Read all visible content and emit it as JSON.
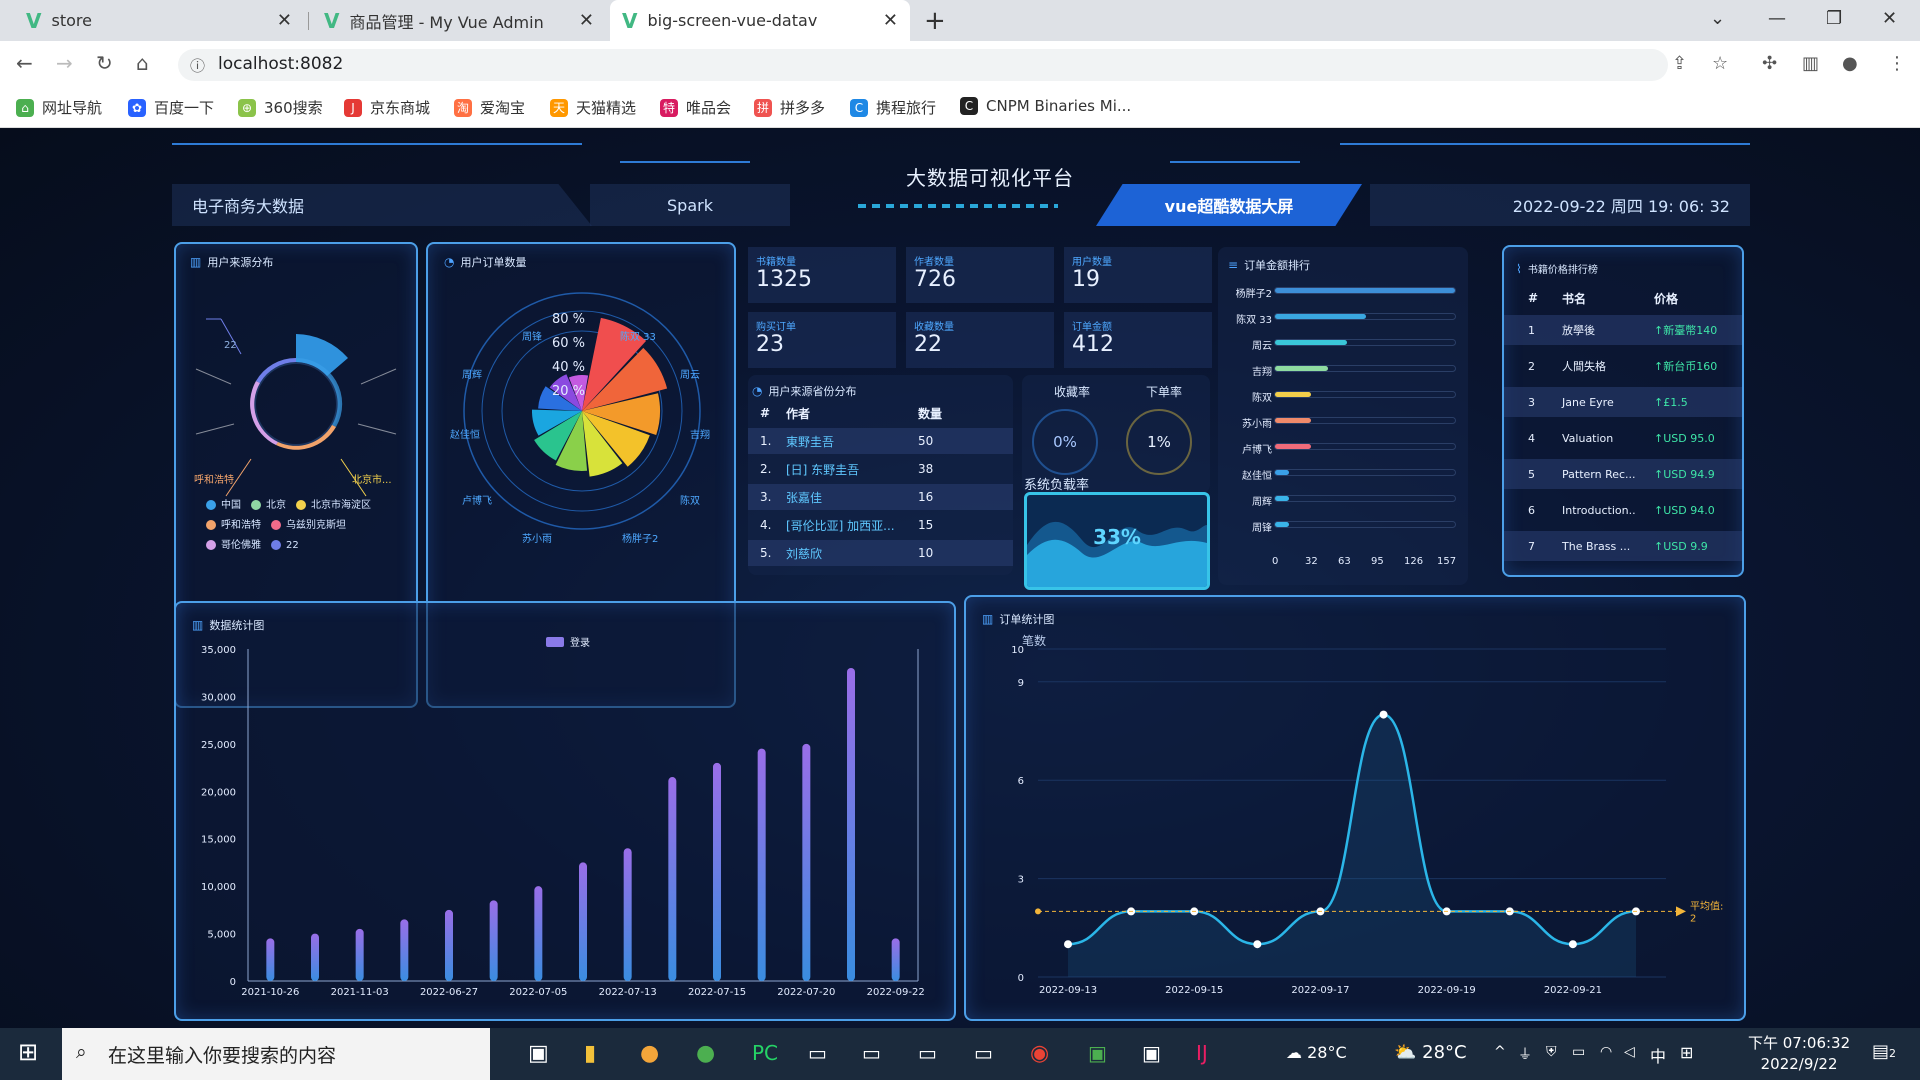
{
  "browser": {
    "tabs": [
      {
        "label": "store"
      },
      {
        "label": "商品管理 - My Vue Admin"
      },
      {
        "label": "big-screen-vue-datav"
      }
    ],
    "url": "localhost:8082",
    "bookmarks": [
      "网址导航",
      "百度一下",
      "360搜索",
      "京东商城",
      "爱淘宝",
      "天猫精选",
      "唯品会",
      "拼多多",
      "携程旅行",
      "CNPM Binaries Mi..."
    ]
  },
  "header": {
    "title": "大数据可视化平台",
    "left": "电子商务大数据",
    "mid": "Spark",
    "highlight": "vue超酷数据大屏",
    "datetime": "2022-09-22 周四 19: 06: 32"
  },
  "user_source": {
    "title": "用户来源分布",
    "callouts": [
      "22",
      "呼和浩特",
      "北京市..."
    ],
    "legend": [
      {
        "name": "中国",
        "color": "#3aa0e8"
      },
      {
        "name": "北京",
        "color": "#8fd6a3"
      },
      {
        "name": "北京市海淀区",
        "color": "#f3d14c"
      },
      {
        "name": "呼和浩特",
        "color": "#f2a36b"
      },
      {
        "name": "乌兹别克斯坦",
        "color": "#f06b8a"
      },
      {
        "name": "哥伦佛雅",
        "color": "#d4a0e8"
      },
      {
        "name": "22",
        "color": "#6f7ee8"
      }
    ]
  },
  "user_orders": {
    "title": "用户订单数量",
    "rings": [
      "80 %",
      "60 %",
      "40 %",
      "20 %"
    ],
    "labels": [
      "周锋",
      "陈双 33",
      "周云",
      "吉翔",
      "陈双",
      "杨胖子2",
      "苏小雨",
      "卢博飞",
      "赵佳恒",
      "周辉"
    ]
  },
  "stats": [
    {
      "label": "书籍数量",
      "value": "1325"
    },
    {
      "label": "作者数量",
      "value": "726"
    },
    {
      "label": "用户数量",
      "value": "19"
    },
    {
      "label": "购买订单",
      "value": "23"
    },
    {
      "label": "收藏数量",
      "value": "22"
    },
    {
      "label": "订单金额",
      "value": "412"
    }
  ],
  "author_table": {
    "title": "用户来源省份分布",
    "col_num": "#",
    "col_author": "作者",
    "col_count": "数量",
    "rows": [
      {
        "n": "1.",
        "author": "東野圭吾",
        "count": "50"
      },
      {
        "n": "2.",
        "author": "[日] 东野圭吾",
        "count": "38"
      },
      {
        "n": "3.",
        "author": "张嘉佳",
        "count": "16"
      },
      {
        "n": "4.",
        "author": "[哥伦比亚] 加西亚...",
        "count": "15"
      },
      {
        "n": "5.",
        "author": "刘慈欣",
        "count": "10"
      }
    ]
  },
  "rates": {
    "collect_label": "收藏率",
    "collect_value": "0%",
    "order_label": "下单率",
    "order_value": "1%",
    "load_label": "系统负载率",
    "load_value": "33%"
  },
  "order_rank": {
    "title": "订单金额排行",
    "max": 157,
    "axis": [
      "0",
      "32",
      "63",
      "95",
      "126",
      "157"
    ],
    "items": [
      {
        "name": "杨胖子2",
        "value": 157,
        "color": "#3d8fd8"
      },
      {
        "name": "陈双 33",
        "value": 79,
        "color": "#3aa7e0"
      },
      {
        "name": "周云",
        "value": 63,
        "color": "#3ac6d8"
      },
      {
        "name": "吉翔",
        "value": 46,
        "color": "#8fdba0"
      },
      {
        "name": "陈双",
        "value": 31,
        "color": "#f3cf4a"
      },
      {
        "name": "苏小雨",
        "value": 31,
        "color": "#f08a6a"
      },
      {
        "name": "卢博飞",
        "value": 31,
        "color": "#f06b7a"
      },
      {
        "name": "赵佳恒",
        "value": 12,
        "color": "#3aa0e8"
      },
      {
        "name": "周辉",
        "value": 12,
        "color": "#3ab4e8"
      },
      {
        "name": "周锋",
        "value": 12,
        "color": "#3ab4e8"
      }
    ]
  },
  "book_rank": {
    "title": "书籍价格排行榜",
    "col_num": "#",
    "col_name": "书名",
    "col_price": "价格",
    "rows": [
      {
        "n": "1",
        "name": "放學後",
        "price": "↑新臺幣140"
      },
      {
        "n": "2",
        "name": "人間失格",
        "price": "↑新台币160"
      },
      {
        "n": "3",
        "name": "Jane Eyre",
        "price": "↑£1.5"
      },
      {
        "n": "4",
        "name": "Valuation",
        "price": "↑USD 95.0"
      },
      {
        "n": "5",
        "name": "Pattern Rec...",
        "price": "↑USD 94.9"
      },
      {
        "n": "6",
        "name": "Introduction...",
        "price": "↑USD 94.0"
      },
      {
        "n": "7",
        "name": "The Brass ...",
        "price": "↑USD 9.9"
      }
    ]
  },
  "chart_data": [
    {
      "type": "bar",
      "title": "数据统计图",
      "legend": [
        "登录"
      ],
      "ylim": [
        0,
        35000
      ],
      "yticks": [
        "0",
        "5,000",
        "10,000",
        "15,000",
        "20,000",
        "25,000",
        "30,000",
        "35,000"
      ],
      "xticks": [
        "2021-10-26",
        "2021-11-03",
        "2022-06-27",
        "2022-07-05",
        "2022-07-13",
        "2022-07-15",
        "2022-07-20",
        "2022-09-22"
      ],
      "values": [
        4500,
        5000,
        5500,
        6500,
        7500,
        8500,
        10000,
        12500,
        14000,
        21500,
        23000,
        24500,
        25000,
        33000,
        4500
      ]
    },
    {
      "type": "line",
      "title": "订单统计图",
      "ylabel": "笔数",
      "ylim": [
        0,
        10
      ],
      "yticks": [
        "0",
        "3",
        "6",
        "9",
        "10"
      ],
      "xticks": [
        "2022-09-13",
        "2022-09-15",
        "2022-09-17",
        "2022-09-19",
        "2022-09-21"
      ],
      "values": [
        1,
        2,
        2,
        1,
        2,
        8,
        2,
        2,
        1,
        2
      ],
      "average": 2,
      "average_label": "平均值:",
      "average_value": "2"
    }
  ],
  "taskbar": {
    "search_placeholder": "在这里输入你要搜索的内容",
    "weather1": "28°C",
    "weather2": "28°C",
    "ime": "中",
    "time": "下午 07:06:32",
    "date": "2022/9/22",
    "notifications": "2"
  }
}
